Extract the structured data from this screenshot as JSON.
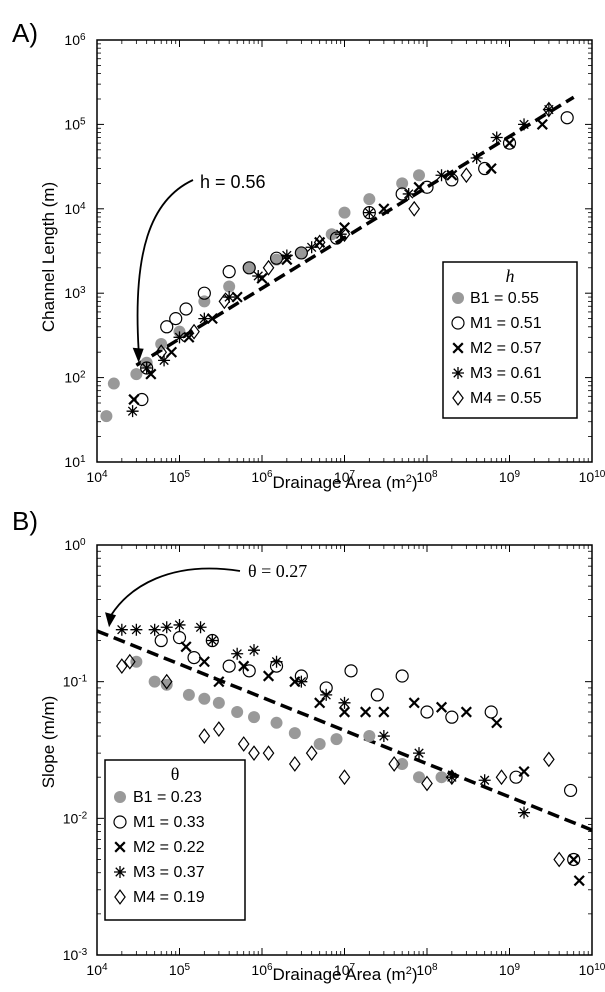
{
  "colors": {
    "axis": "#000000",
    "B1": "#999999",
    "fit": "#000000",
    "background": "#ffffff"
  },
  "chart_data": [
    {
      "panel_label": "A)",
      "type": "scatter",
      "x_scale": "log",
      "y_scale": "log",
      "xlim": [
        10000,
        10000000000
      ],
      "ylim": [
        10,
        1000000
      ],
      "x_ticks": [
        4,
        5,
        6,
        7,
        8,
        9,
        10
      ],
      "y_ticks": [
        1,
        2,
        3,
        4,
        5,
        6
      ],
      "xlabel_text": "Drainage Area (m",
      "xlabel_sup": "2",
      "xlabel_end": ")",
      "ylabel": "Channel Length (m)",
      "annotation": {
        "text": "h = 0.56",
        "arrow_to": [
          32000,
          150
        ]
      },
      "fit_line": {
        "x": [
          30000,
          6000000000
        ],
        "y": [
          140,
          210000
        ],
        "style": "dashed"
      },
      "legend": {
        "title": "h",
        "location": "lower-right",
        "entries": [
          {
            "text": "B1 = 0.55",
            "marker": "filled-circle"
          },
          {
            "text": "M1 = 0.51",
            "marker": "open-circle"
          },
          {
            "text": "M2 = 0.57",
            "marker": "x"
          },
          {
            "text": "M3 = 0.61",
            "marker": "asterisk"
          },
          {
            "text": "M4 = 0.55",
            "marker": "diamond"
          }
        ]
      },
      "series": [
        {
          "name": "B1 = 0.55",
          "marker": "filled-circle",
          "x": [
            13000,
            16000,
            30000,
            40000,
            60000,
            100000,
            200000,
            400000,
            700000,
            1500000,
            3000000,
            7000000,
            10000000,
            20000000,
            50000000,
            80000000
          ],
          "y": [
            35,
            85,
            110,
            150,
            250,
            350,
            800,
            1200,
            2000,
            2500,
            3000,
            5000,
            9000,
            13000,
            20000,
            25000
          ]
        },
        {
          "name": "M1 = 0.51",
          "marker": "open-circle",
          "x": [
            35000,
            40000,
            70000,
            90000,
            120000,
            200000,
            400000,
            700000,
            1500000,
            3000000,
            8000000,
            20000000,
            50000000,
            100000000,
            200000000,
            500000000,
            1000000000,
            5000000000
          ],
          "y": [
            55,
            130,
            400,
            500,
            650,
            1000,
            1800,
            2000,
            2600,
            3000,
            4500,
            9000,
            15000,
            18000,
            22000,
            30000,
            60000,
            120000
          ]
        },
        {
          "name": "M2 = 0.57",
          "marker": "x",
          "x": [
            28000,
            45000,
            80000,
            130000,
            250000,
            500000,
            1000000,
            2000000,
            5000000,
            10000000,
            30000000,
            80000000,
            200000000,
            600000000,
            1000000000,
            2500000000
          ],
          "y": [
            55,
            110,
            200,
            300,
            500,
            900,
            1500,
            2500,
            4000,
            6000,
            10000,
            18000,
            25000,
            30000,
            60000,
            100000
          ]
        },
        {
          "name": "M3 = 0.61",
          "marker": "asterisk",
          "x": [
            27000,
            40000,
            65000,
            100000,
            200000,
            400000,
            900000,
            2000000,
            4000000,
            9000000,
            20000000,
            60000000,
            150000000,
            400000000,
            700000000,
            1500000000,
            3000000000
          ],
          "y": [
            40,
            130,
            160,
            300,
            500,
            900,
            1600,
            2800,
            3500,
            5000,
            9000,
            15000,
            25000,
            40000,
            70000,
            100000,
            150000
          ]
        },
        {
          "name": "M4 = 0.55",
          "marker": "diamond",
          "x": [
            60000,
            150000,
            350000,
            1200000,
            5000000,
            10000000,
            70000000,
            300000000,
            3000000000
          ],
          "y": [
            200,
            350,
            800,
            2000,
            4000,
            5000,
            10000,
            25000,
            150000
          ]
        }
      ]
    },
    {
      "panel_label": "B)",
      "type": "scatter",
      "x_scale": "log",
      "y_scale": "log",
      "xlim": [
        10000,
        10000000000
      ],
      "ylim": [
        0.001,
        1
      ],
      "x_ticks": [
        4,
        5,
        6,
        7,
        8,
        9,
        10
      ],
      "y_ticks": [
        -3,
        -2,
        -1,
        0
      ],
      "xlabel_text": "Drainage Area (m",
      "xlabel_sup": "2",
      "xlabel_end": ")",
      "ylabel": "Slope (m/m)",
      "annotation": {
        "text": "θ = 0.27",
        "arrow_to": [
          14000,
          0.25
        ]
      },
      "fit_line": {
        "x": [
          10000,
          10000000000
        ],
        "y": [
          0.235,
          0.0082
        ],
        "style": "dashed"
      },
      "legend": {
        "title": "θ",
        "location": "lower-left",
        "entries": [
          {
            "text": "B1 = 0.23",
            "marker": "filled-circle"
          },
          {
            "text": "M1 = 0.33",
            "marker": "open-circle"
          },
          {
            "text": "M2 = 0.22",
            "marker": "x"
          },
          {
            "text": "M3 = 0.37",
            "marker": "asterisk"
          },
          {
            "text": "M4 = 0.19",
            "marker": "diamond"
          }
        ]
      },
      "series": [
        {
          "name": "B1 = 0.23",
          "marker": "filled-circle",
          "x": [
            30000,
            50000,
            70000,
            130000,
            200000,
            300000,
            500000,
            800000,
            1500000,
            2500000,
            5000000,
            8000000,
            20000000,
            50000000,
            80000000,
            150000000
          ],
          "y": [
            0.14,
            0.1,
            0.095,
            0.08,
            0.075,
            0.07,
            0.06,
            0.055,
            0.05,
            0.042,
            0.035,
            0.038,
            0.04,
            0.025,
            0.02,
            0.02
          ]
        },
        {
          "name": "M1 = 0.33",
          "marker": "open-circle",
          "x": [
            60000,
            100000,
            150000,
            250000,
            400000,
            700000,
            1500000,
            3000000,
            6000000,
            12000000,
            25000000,
            50000000,
            100000000,
            200000000,
            600000000,
            1200000000,
            5500000000,
            6000000000
          ],
          "y": [
            0.2,
            0.21,
            0.15,
            0.2,
            0.13,
            0.12,
            0.13,
            0.11,
            0.09,
            0.12,
            0.08,
            0.11,
            0.06,
            0.055,
            0.06,
            0.02,
            0.016,
            0.005
          ]
        },
        {
          "name": "M2 = 0.22",
          "marker": "x",
          "x": [
            120000,
            200000,
            300000,
            600000,
            1200000,
            2500000,
            5000000,
            10000000,
            18000000,
            30000000,
            70000000,
            150000000,
            300000000,
            700000000,
            1500000000,
            6000000000,
            7000000000
          ],
          "y": [
            0.18,
            0.14,
            0.1,
            0.13,
            0.11,
            0.1,
            0.07,
            0.06,
            0.06,
            0.06,
            0.07,
            0.065,
            0.06,
            0.05,
            0.022,
            0.005,
            0.0035
          ]
        },
        {
          "name": "M3 = 0.37",
          "marker": "asterisk",
          "x": [
            20000,
            30000,
            50000,
            70000,
            100000,
            180000,
            250000,
            500000,
            800000,
            1500000,
            3000000,
            6000000,
            10000000,
            30000000,
            80000000,
            200000000,
            500000000,
            1500000000
          ],
          "y": [
            0.24,
            0.24,
            0.24,
            0.25,
            0.26,
            0.25,
            0.2,
            0.16,
            0.17,
            0.14,
            0.1,
            0.08,
            0.07,
            0.04,
            0.03,
            0.02,
            0.019,
            0.011
          ]
        },
        {
          "name": "M4 = 0.19",
          "marker": "diamond",
          "x": [
            20000,
            25000,
            70000,
            200000,
            300000,
            600000,
            800000,
            1200000,
            2500000,
            4000000,
            10000000,
            40000000,
            100000000,
            200000000,
            800000000,
            3000000000,
            4000000000
          ],
          "y": [
            0.13,
            0.14,
            0.1,
            0.04,
            0.045,
            0.035,
            0.03,
            0.03,
            0.025,
            0.03,
            0.02,
            0.025,
            0.018,
            0.02,
            0.02,
            0.027,
            0.005
          ]
        }
      ]
    }
  ]
}
